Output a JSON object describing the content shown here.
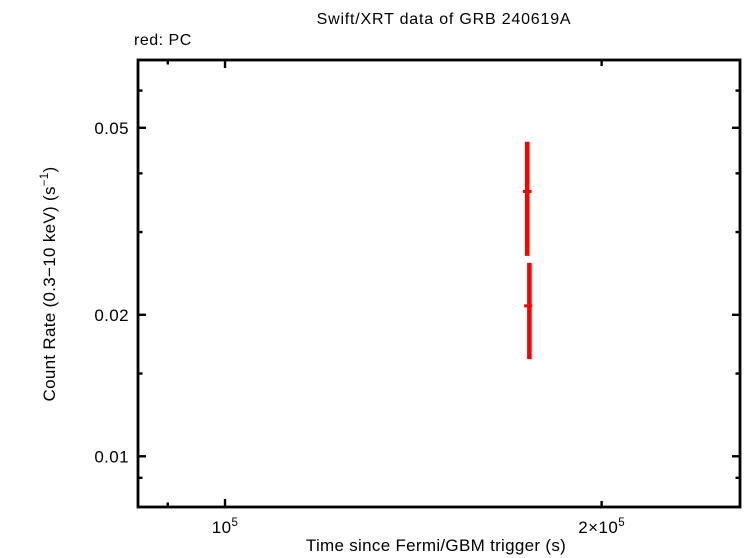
{
  "chart_data": {
    "type": "scatter",
    "title": "Swift/XRT data of GRB 240619A",
    "legend": "red: PC",
    "xlabel": "Time since Fermi/GBM trigger (s)",
    "ylabel": {
      "prefix": "Count Rate (0.3−10 keV) (s",
      "superscript": "−1",
      "suffix": ")"
    },
    "axes": {
      "xscale": "log",
      "yscale": "log",
      "xlim": [
        85200,
        258000
      ],
      "ylim": [
        0.0078,
        0.0697
      ],
      "x_ticks": [
        {
          "value": 90000,
          "type": "minor"
        },
        {
          "value": 100000,
          "type": "major",
          "label_base": "10",
          "label_exp": "5"
        },
        {
          "value": 200000,
          "type": "major_short",
          "label_base": "2×10",
          "label_exp": "5"
        }
      ],
      "y_ticks": [
        {
          "value": 0.06,
          "type": "minor"
        },
        {
          "value": 0.05,
          "type": "major",
          "label": "0.05"
        },
        {
          "value": 0.04,
          "type": "minor"
        },
        {
          "value": 0.03,
          "type": "minor"
        },
        {
          "value": 0.02,
          "type": "major",
          "label": "0.02"
        },
        {
          "value": 0.015,
          "type": "minor"
        },
        {
          "value": 0.01,
          "type": "major",
          "label": "0.01"
        },
        {
          "value": 0.009,
          "type": "minor"
        }
      ]
    },
    "series": [
      {
        "name": "PC",
        "color": "#ff0000",
        "marker": "cross-with-error-bars",
        "points": [
          {
            "t": 174400,
            "t_err_minus": 1400,
            "t_err_plus": 1400,
            "rate": 0.0366,
            "rate_err_minus": 0.0099,
            "rate_err_plus": 0.0101
          },
          {
            "t": 175100,
            "t_err_minus": 1700,
            "t_err_plus": 900,
            "rate": 0.0209,
            "rate_err_minus": 0.0048,
            "rate_err_plus": 0.0049
          }
        ]
      }
    ],
    "colors": {
      "axis": "#000000",
      "background": "#ffffff",
      "pc_red": "#ff0000"
    }
  }
}
